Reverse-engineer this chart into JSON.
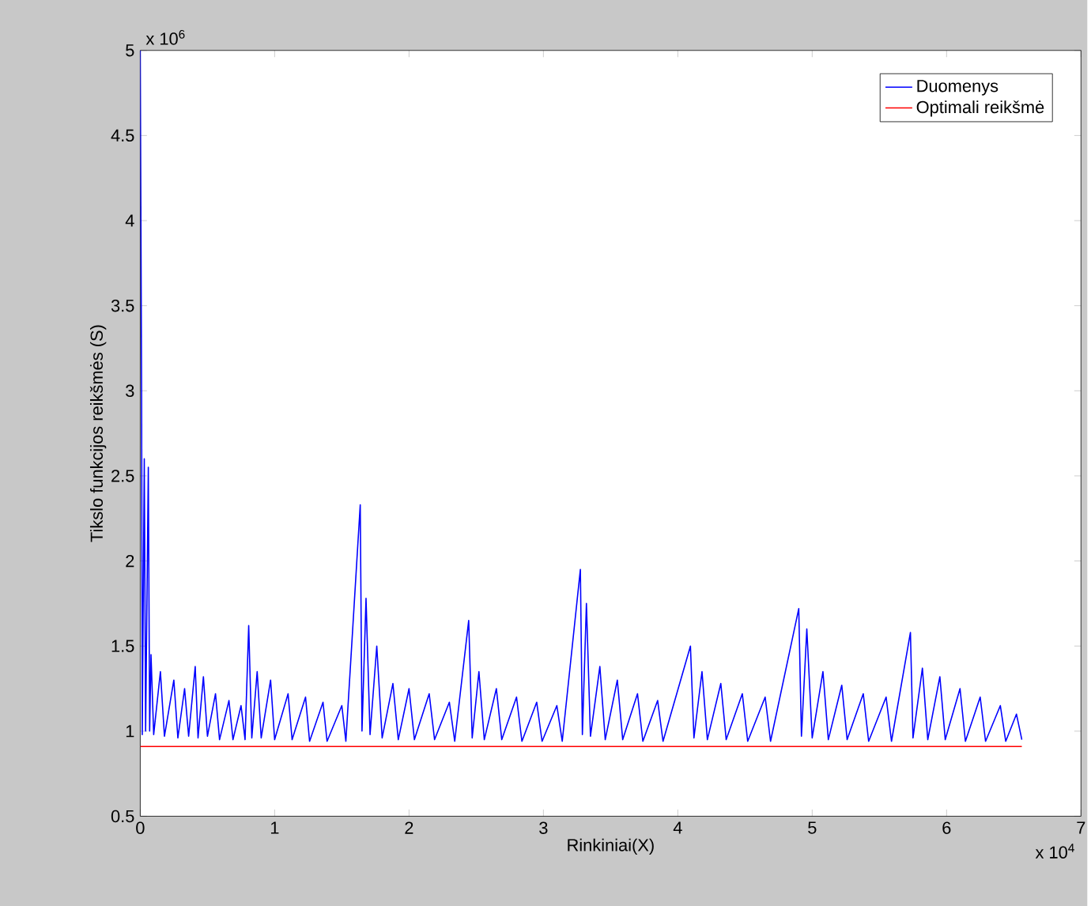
{
  "chart_data": {
    "type": "line",
    "xlabel": "Rinkiniai(X)",
    "ylabel": "Tikslo funkcijos reikšmės (S)",
    "annotations": [
      "x 10$^{6}$",
      "x 10$^{4}$"
    ],
    "xlim": [
      0,
      7
    ],
    "xticks": [
      0,
      1,
      2,
      3,
      4,
      5,
      6,
      7
    ],
    "ylim": [
      0.5,
      5
    ],
    "yticks": [
      0.5,
      1,
      1.5,
      2,
      2.5,
      3,
      3.5,
      4,
      4.5,
      5
    ],
    "legend": "top right",
    "series": [
      {
        "name": "Duomenys",
        "color": "#0000ff",
        "x": [
          0,
          0.01,
          0.015,
          0.03,
          0.04,
          0.06,
          0.07,
          0.08,
          0.1,
          0.15,
          0.18,
          0.25,
          0.28,
          0.33,
          0.36,
          0.409,
          0.43,
          0.47,
          0.5,
          0.56,
          0.59,
          0.66,
          0.69,
          0.75,
          0.78,
          0.807,
          0.83,
          0.87,
          0.9,
          0.97,
          1.0,
          1.1,
          1.13,
          1.23,
          1.26,
          1.36,
          1.39,
          1.5,
          1.53,
          1.637,
          1.65,
          1.68,
          1.71,
          1.76,
          1.8,
          1.88,
          1.92,
          2.0,
          2.04,
          2.15,
          2.19,
          2.3,
          2.34,
          2.444,
          2.47,
          2.52,
          2.56,
          2.65,
          2.69,
          2.8,
          2.84,
          2.95,
          2.99,
          3.1,
          3.14,
          3.275,
          3.29,
          3.32,
          3.35,
          3.42,
          3.46,
          3.55,
          3.59,
          3.7,
          3.74,
          3.85,
          3.89,
          4.094,
          4.12,
          4.18,
          4.22,
          4.32,
          4.36,
          4.48,
          4.52,
          4.65,
          4.69,
          4.9,
          4.92,
          4.96,
          5.0,
          5.08,
          5.12,
          5.22,
          5.26,
          5.38,
          5.42,
          5.55,
          5.59,
          5.731,
          5.75,
          5.82,
          5.86,
          5.95,
          5.99,
          6.1,
          6.14,
          6.25,
          6.29,
          6.4,
          6.44,
          6.52,
          6.56
        ],
        "values": [
          5.0,
          3.0,
          0.98,
          2.6,
          1.0,
          2.55,
          1.0,
          1.45,
          0.98,
          1.35,
          0.97,
          1.3,
          0.96,
          1.25,
          0.97,
          1.38,
          0.96,
          1.32,
          0.97,
          1.22,
          0.95,
          1.18,
          0.95,
          1.15,
          0.95,
          1.62,
          0.96,
          1.35,
          0.96,
          1.3,
          0.95,
          1.22,
          0.95,
          1.2,
          0.94,
          1.17,
          0.94,
          1.15,
          0.94,
          2.33,
          1.0,
          1.78,
          0.98,
          1.5,
          0.96,
          1.28,
          0.95,
          1.25,
          0.95,
          1.22,
          0.95,
          1.17,
          0.94,
          1.65,
          0.96,
          1.35,
          0.95,
          1.25,
          0.95,
          1.2,
          0.94,
          1.17,
          0.94,
          1.15,
          0.94,
          1.95,
          0.98,
          1.75,
          0.97,
          1.38,
          0.95,
          1.3,
          0.95,
          1.22,
          0.94,
          1.18,
          0.94,
          1.5,
          0.96,
          1.35,
          0.95,
          1.28,
          0.95,
          1.22,
          0.94,
          1.2,
          0.94,
          1.72,
          0.97,
          1.6,
          0.96,
          1.35,
          0.95,
          1.27,
          0.95,
          1.22,
          0.94,
          1.2,
          0.94,
          1.58,
          0.96,
          1.37,
          0.95,
          1.32,
          0.95,
          1.25,
          0.94,
          1.2,
          0.94,
          1.15,
          0.94,
          1.1,
          0.95
        ]
      },
      {
        "name": "Optimali reikšmė",
        "color": "#ff0000",
        "x": [
          0,
          6.56
        ],
        "values": [
          0.91,
          0.91
        ]
      }
    ]
  }
}
